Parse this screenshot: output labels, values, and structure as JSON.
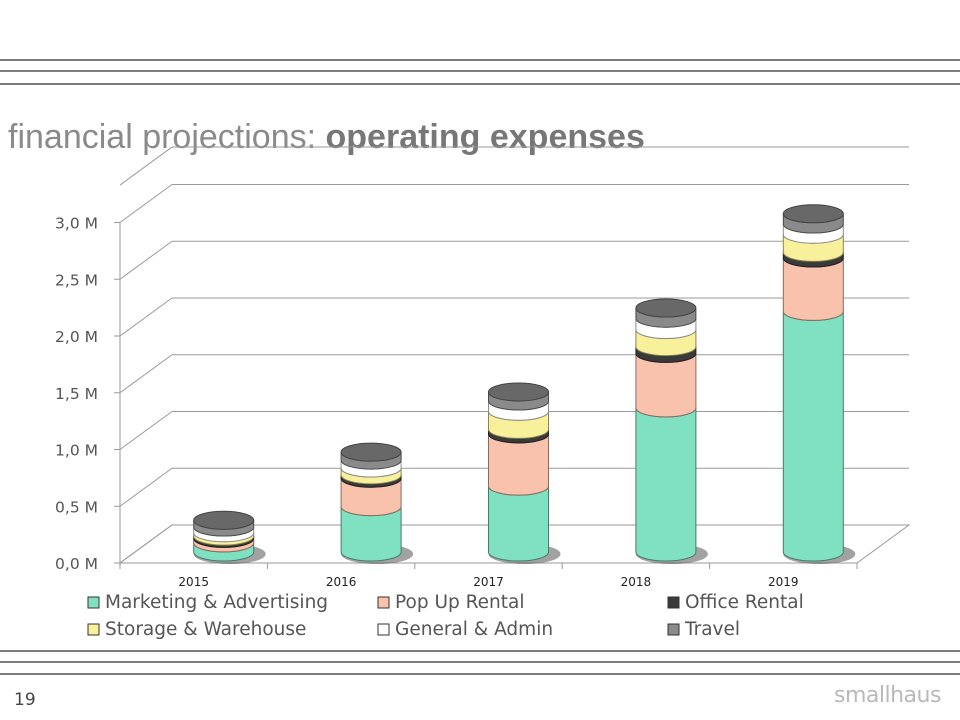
{
  "slide": {
    "title_light": "financial projections:",
    "title_bold": "operating expenses",
    "page_number": "19",
    "logo_text": "smallhaus"
  },
  "chart_data": {
    "type": "bar",
    "stacked": true,
    "style": "3d-cylinder",
    "categories": [
      "2015",
      "2016",
      "2017",
      "2018",
      "2019"
    ],
    "ylim": [
      0,
      3.0
    ],
    "yticks": [
      "0,0 M",
      "0,5 M",
      "1,0 M",
      "1,5 M",
      "2,0 M",
      "2,5 M",
      "3,0 M"
    ],
    "grid": true,
    "legend_position": "bottom",
    "series": [
      {
        "name": "Marketing & Advertising",
        "color": "#7fe0c2",
        "values": [
          0.08,
          0.4,
          0.58,
          1.27,
          2.12
        ]
      },
      {
        "name": "Pop Up Rental",
        "color": "#f9c2ad",
        "values": [
          0.04,
          0.25,
          0.46,
          0.48,
          0.47
        ]
      },
      {
        "name": "Office Rental",
        "color": "#3a3a3a",
        "values": [
          0.02,
          0.03,
          0.04,
          0.06,
          0.05
        ]
      },
      {
        "name": "Storage & Warehouse",
        "color": "#f8f09a",
        "values": [
          0.03,
          0.06,
          0.16,
          0.15,
          0.16
        ]
      },
      {
        "name": "General & Admin",
        "color": "#ffffff",
        "values": [
          0.05,
          0.07,
          0.09,
          0.1,
          0.09
        ]
      },
      {
        "name": "Travel",
        "color": "#8a8a8a",
        "values": [
          0.06,
          0.07,
          0.08,
          0.09,
          0.09
        ]
      }
    ]
  }
}
